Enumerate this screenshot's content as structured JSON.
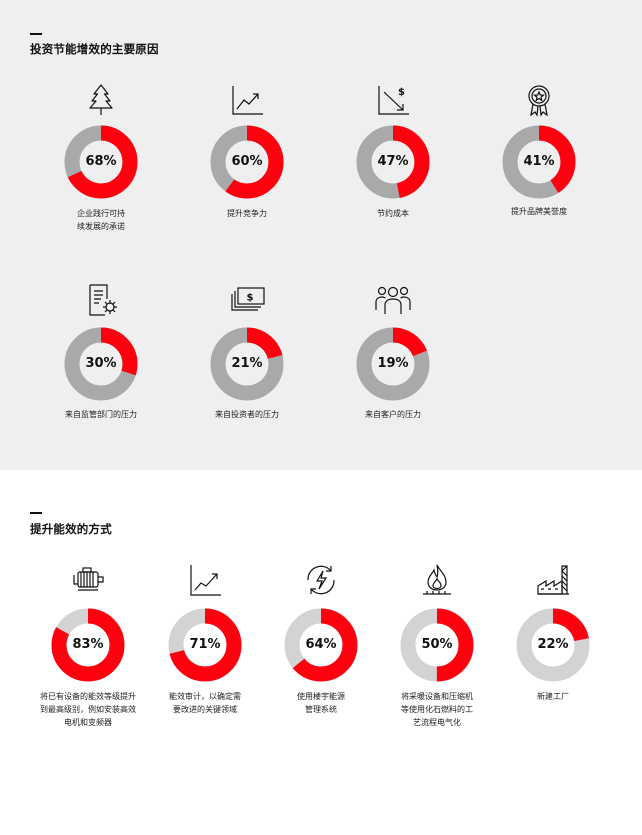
{
  "sections": [
    {
      "title": "投资节能增效的主要原因",
      "track_color": "#a9a9a9",
      "items": [
        {
          "value": 68,
          "value_label": "68%",
          "label_lines": [
            "企业践行可持",
            "续发展的承诺"
          ],
          "icon": "tree-icon"
        },
        {
          "value": 60,
          "value_label": "60%",
          "label_lines": [
            "提升竞争力"
          ],
          "icon": "trend-up-chart-icon"
        },
        {
          "value": 47,
          "value_label": "47%",
          "label_lines": [
            "节约成本"
          ],
          "icon": "cost-down-chart-icon"
        },
        {
          "value": 41,
          "value_label": "41%",
          "label_lines": [
            "提升品牌美誉度"
          ],
          "icon": "award-badge-icon"
        },
        {
          "value": 30,
          "value_label": "30%",
          "label_lines": [
            "来自监管部门的压力"
          ],
          "icon": "document-gear-icon"
        },
        {
          "value": 21,
          "value_label": "21%",
          "label_lines": [
            "来自投资者的压力"
          ],
          "icon": "money-stack-icon"
        },
        {
          "value": 19,
          "value_label": "19%",
          "label_lines": [
            "来自客户的压力"
          ],
          "icon": "customers-group-icon"
        }
      ]
    },
    {
      "title": "提升能效的方式",
      "track_color": "#d3d3d3",
      "items": [
        {
          "value": 83,
          "value_label": "83%",
          "label_lines": [
            "将已有设备的能效等级提升",
            "到最高级别，例如安装高效",
            "电机和变频器"
          ],
          "icon": "motor-icon"
        },
        {
          "value": 71,
          "value_label": "71%",
          "label_lines": [
            "能效审计，以确定需",
            "要改进的关键领域"
          ],
          "icon": "audit-chart-icon"
        },
        {
          "value": 64,
          "value_label": "64%",
          "label_lines": [
            "使用楼宇能源",
            "管理系统"
          ],
          "icon": "energy-cycle-icon"
        },
        {
          "value": 50,
          "value_label": "50%",
          "label_lines": [
            "将采暖设备和压缩机",
            "等使用化石燃料的工",
            "艺流程电气化"
          ],
          "icon": "flame-icon"
        },
        {
          "value": 22,
          "value_label": "22%",
          "label_lines": [
            "新建工厂"
          ],
          "icon": "factory-icon"
        }
      ]
    }
  ],
  "accent_color": "#ff000f",
  "chart_data": [
    {
      "type": "pie",
      "title": "投资节能增效的主要原因",
      "categories": [
        "企业践行可持续发展的承诺",
        "提升竞争力",
        "节约成本",
        "提升品牌美誉度",
        "来自监管部门的压力",
        "来自投资者的压力",
        "来自客户的压力"
      ],
      "values": [
        68,
        60,
        47,
        41,
        30,
        21,
        19
      ]
    },
    {
      "type": "pie",
      "title": "提升能效的方式",
      "categories": [
        "将已有设备的能效等级提升到最高级别，例如安装高效电机和变频器",
        "能效审计，以确定需要改进的关键领域",
        "使用楼宇能源管理系统",
        "将采暖设备和压缩机等使用化石燃料的工艺流程电气化",
        "新建工厂"
      ],
      "values": [
        83,
        71,
        64,
        50,
        22
      ]
    }
  ]
}
